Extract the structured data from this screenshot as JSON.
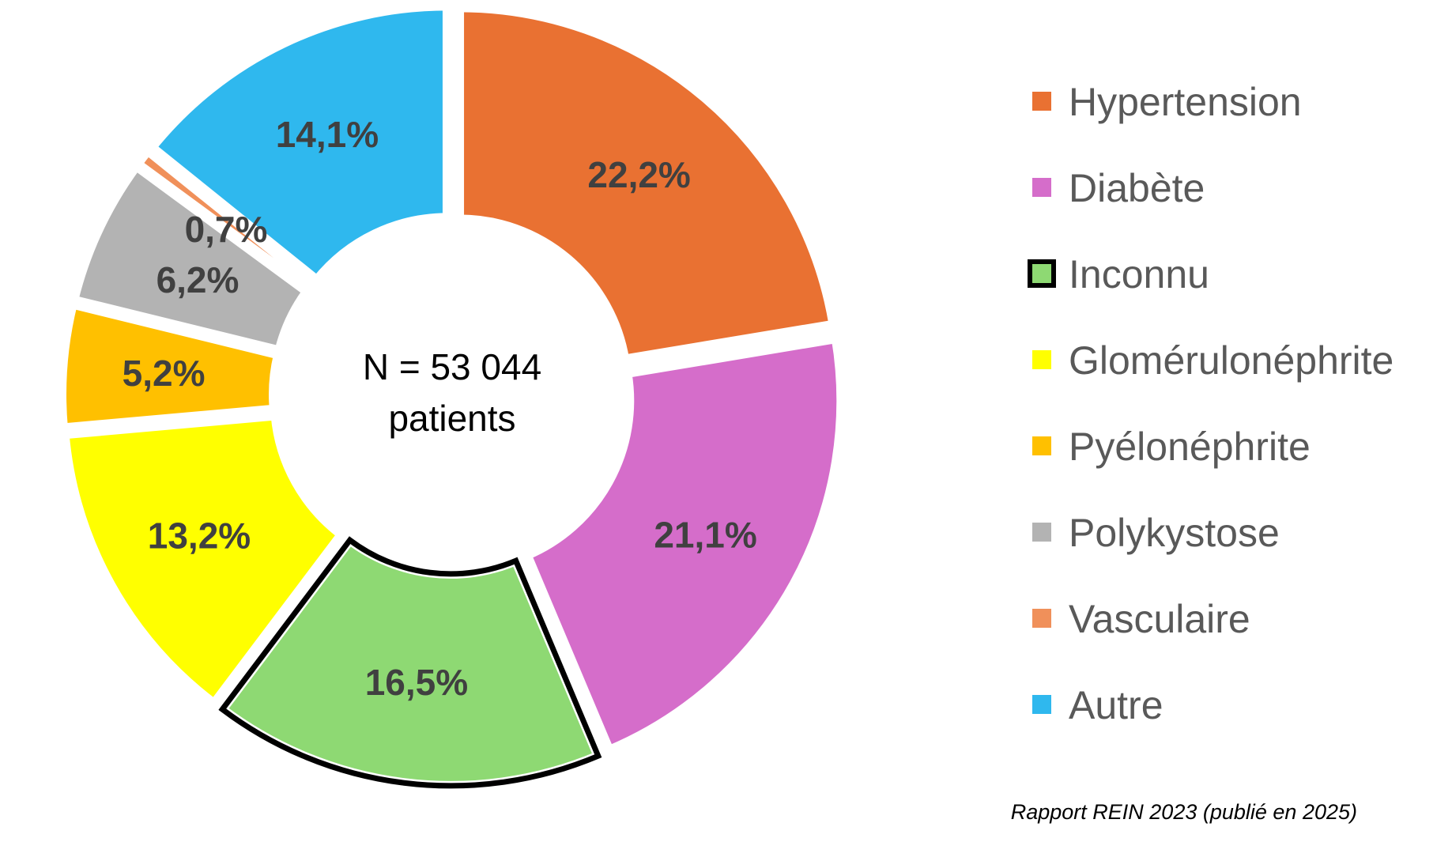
{
  "chart_data": {
    "type": "pie",
    "center_text": [
      "N = 53 044",
      "patients"
    ],
    "source": "Rapport REIN 2023 (publié en 2025)",
    "legend_position": "right",
    "slices": [
      {
        "name": "Hypertension",
        "value": 22.2,
        "label": "22,2%",
        "color": "#E97132",
        "exploded": true
      },
      {
        "name": "Diabète",
        "value": 21.1,
        "label": "21,1%",
        "color": "#D56DCA",
        "exploded": true
      },
      {
        "name": "Inconnu",
        "value": 16.5,
        "label": "16,5%",
        "color": "#8ED973",
        "exploded": true,
        "outlined": true
      },
      {
        "name": "Glomérulonéphrite",
        "value": 13.2,
        "label": "13,2%",
        "color": "#FFFF00",
        "exploded": true
      },
      {
        "name": "Pyélonéphrite",
        "value": 5.2,
        "label": "5,2%",
        "color": "#FFC000",
        "exploded": true
      },
      {
        "name": "Polykystose",
        "value": 6.2,
        "label": "6,2%",
        "color": "#B3B3B3",
        "exploded": true
      },
      {
        "name": "Vasculaire",
        "value": 0.7,
        "label": "0,7%",
        "color": "#F0905A",
        "exploded": true
      },
      {
        "name": "Autre",
        "value": 14.1,
        "label": "14,1%",
        "color": "#2FB8EE",
        "exploded": true
      }
    ]
  }
}
